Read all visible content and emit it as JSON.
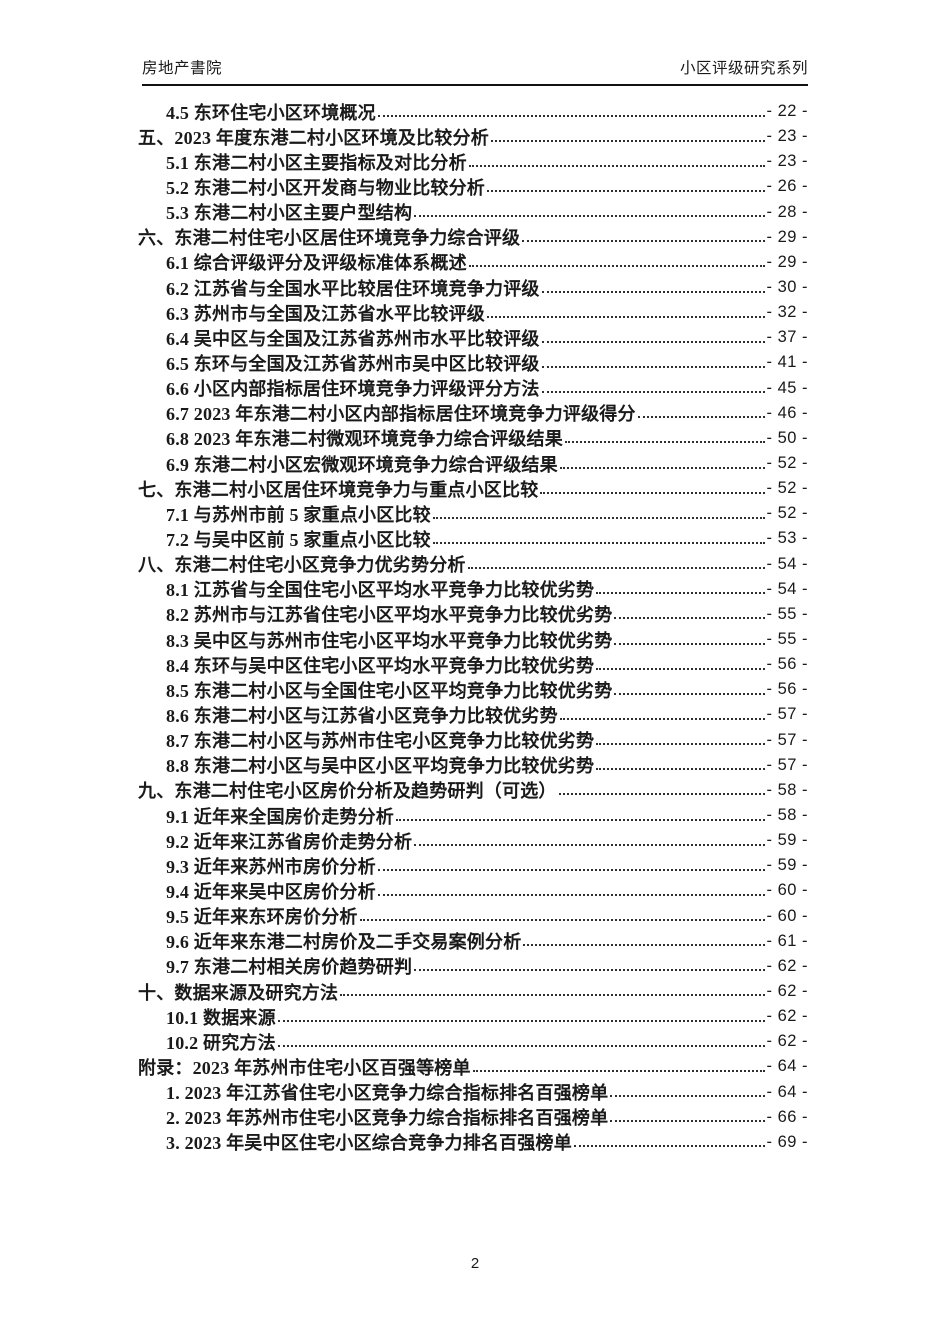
{
  "header": {
    "left": "房地产書院",
    "right": "小区评级研究系列"
  },
  "toc": {
    "entries": [
      {
        "level": 1,
        "label": "4.5 东环住宅小区环境概况",
        "page": "- 22 -"
      },
      {
        "level": 0,
        "label": "五、2023 年度东港二村小区环境及比较分析",
        "page": "- 23 -"
      },
      {
        "level": 1,
        "label": "5.1 东港二村小区主要指标及对比分析",
        "page": "- 23 -"
      },
      {
        "level": 1,
        "label": "5.2 东港二村小区开发商与物业比较分析",
        "page": "- 26 -"
      },
      {
        "level": 1,
        "label": "5.3 东港二村小区主要户型结构",
        "page": "- 28 -"
      },
      {
        "level": 0,
        "label": "六、东港二村住宅小区居住环境竞争力综合评级",
        "page": "- 29 -"
      },
      {
        "level": 1,
        "label": "6.1 综合评级评分及评级标准体系概述",
        "page": "- 29 -"
      },
      {
        "level": 1,
        "label": "6.2 江苏省与全国水平比较居住环境竞争力评级",
        "page": "- 30 -"
      },
      {
        "level": 1,
        "label": "6.3 苏州市与全国及江苏省水平比较评级",
        "page": "- 32 -"
      },
      {
        "level": 1,
        "label": "6.4 吴中区与全国及江苏省苏州市水平比较评级",
        "page": "- 37 -"
      },
      {
        "level": 1,
        "label": "6.5 东环与全国及江苏省苏州市吴中区比较评级",
        "page": "- 41 -"
      },
      {
        "level": 1,
        "label": "6.6 小区内部指标居住环境竞争力评级评分方法",
        "page": "- 45 -"
      },
      {
        "level": 1,
        "label": "6.7 2023 年东港二村小区内部指标居住环境竞争力评级得分",
        "page": "- 46 -"
      },
      {
        "level": 1,
        "label": "6.8 2023 年东港二村微观环境竞争力综合评级结果",
        "page": "- 50 -"
      },
      {
        "level": 1,
        "label": "6.9 东港二村小区宏微观环境竞争力综合评级结果",
        "page": "- 52 -"
      },
      {
        "level": 0,
        "label": "七、东港二村小区居住环境竞争力与重点小区比较",
        "page": "- 52 -"
      },
      {
        "level": 1,
        "label": "7.1 与苏州市前 5 家重点小区比较",
        "page": "- 52 -"
      },
      {
        "level": 1,
        "label": "7.2 与吴中区前 5 家重点小区比较",
        "page": "- 53 -"
      },
      {
        "level": 0,
        "label": "八、东港二村住宅小区竞争力优劣势分析",
        "page": "- 54 -"
      },
      {
        "level": 1,
        "label": "8.1 江苏省与全国住宅小区平均水平竞争力比较优劣势",
        "page": "- 54 -"
      },
      {
        "level": 1,
        "label": "8.2 苏州市与江苏省住宅小区平均水平竞争力比较优劣势",
        "page": "- 55 -"
      },
      {
        "level": 1,
        "label": "8.3 吴中区与苏州市住宅小区平均水平竞争力比较优劣势",
        "page": "- 55 -"
      },
      {
        "level": 1,
        "label": "8.4 东环与吴中区住宅小区平均水平竞争力比较优劣势",
        "page": "- 56 -"
      },
      {
        "level": 1,
        "label": "8.5 东港二村小区与全国住宅小区平均竞争力比较优劣势",
        "page": "- 56 -"
      },
      {
        "level": 1,
        "label": "8.6 东港二村小区与江苏省小区竞争力比较优劣势",
        "page": "- 57 -"
      },
      {
        "level": 1,
        "label": "8.7 东港二村小区与苏州市住宅小区竞争力比较优劣势",
        "page": "- 57 -"
      },
      {
        "level": 1,
        "label": "8.8 东港二村小区与吴中区小区平均竞争力比较优劣势",
        "page": "- 57 -"
      },
      {
        "level": 0,
        "label": "九、东港二村住宅小区房价分析及趋势研判（可选）",
        "page": "- 58 -"
      },
      {
        "level": 1,
        "label": "9.1 近年来全国房价走势分析",
        "page": "- 58 -"
      },
      {
        "level": 1,
        "label": "9.2 近年来江苏省房价走势分析",
        "page": "- 59 -"
      },
      {
        "level": 1,
        "label": "9.3 近年来苏州市房价分析",
        "page": "- 59 -"
      },
      {
        "level": 1,
        "label": "9.4 近年来吴中区房价分析",
        "page": "- 60 -"
      },
      {
        "level": 1,
        "label": "9.5 近年来东环房价分析",
        "page": "- 60 -"
      },
      {
        "level": 1,
        "label": "9.6 近年来东港二村房价及二手交易案例分析",
        "page": "- 61 -"
      },
      {
        "level": 1,
        "label": "9.7 东港二村相关房价趋势研判",
        "page": "- 62 -"
      },
      {
        "level": 0,
        "label": "十、数据来源及研究方法",
        "page": "- 62 -"
      },
      {
        "level": 1,
        "label": "10.1 数据来源",
        "page": "- 62 -"
      },
      {
        "level": 1,
        "label": "10.2 研究方法",
        "page": "- 62 -"
      },
      {
        "level": 0,
        "label": "附录：2023 年苏州市住宅小区百强等榜单",
        "page": "- 64 -"
      },
      {
        "level": 1,
        "label": "1. 2023 年江苏省住宅小区竞争力综合指标排名百强榜单",
        "page": "- 64 -"
      },
      {
        "level": 1,
        "label": "2. 2023 年苏州市住宅小区竞争力综合指标排名百强榜单",
        "page": "- 66 -"
      },
      {
        "level": 1,
        "label": "3. 2023 年吴中区住宅小区综合竞争力排名百强榜单",
        "page": "- 69 -"
      }
    ]
  },
  "footer": {
    "page_number": "2"
  }
}
